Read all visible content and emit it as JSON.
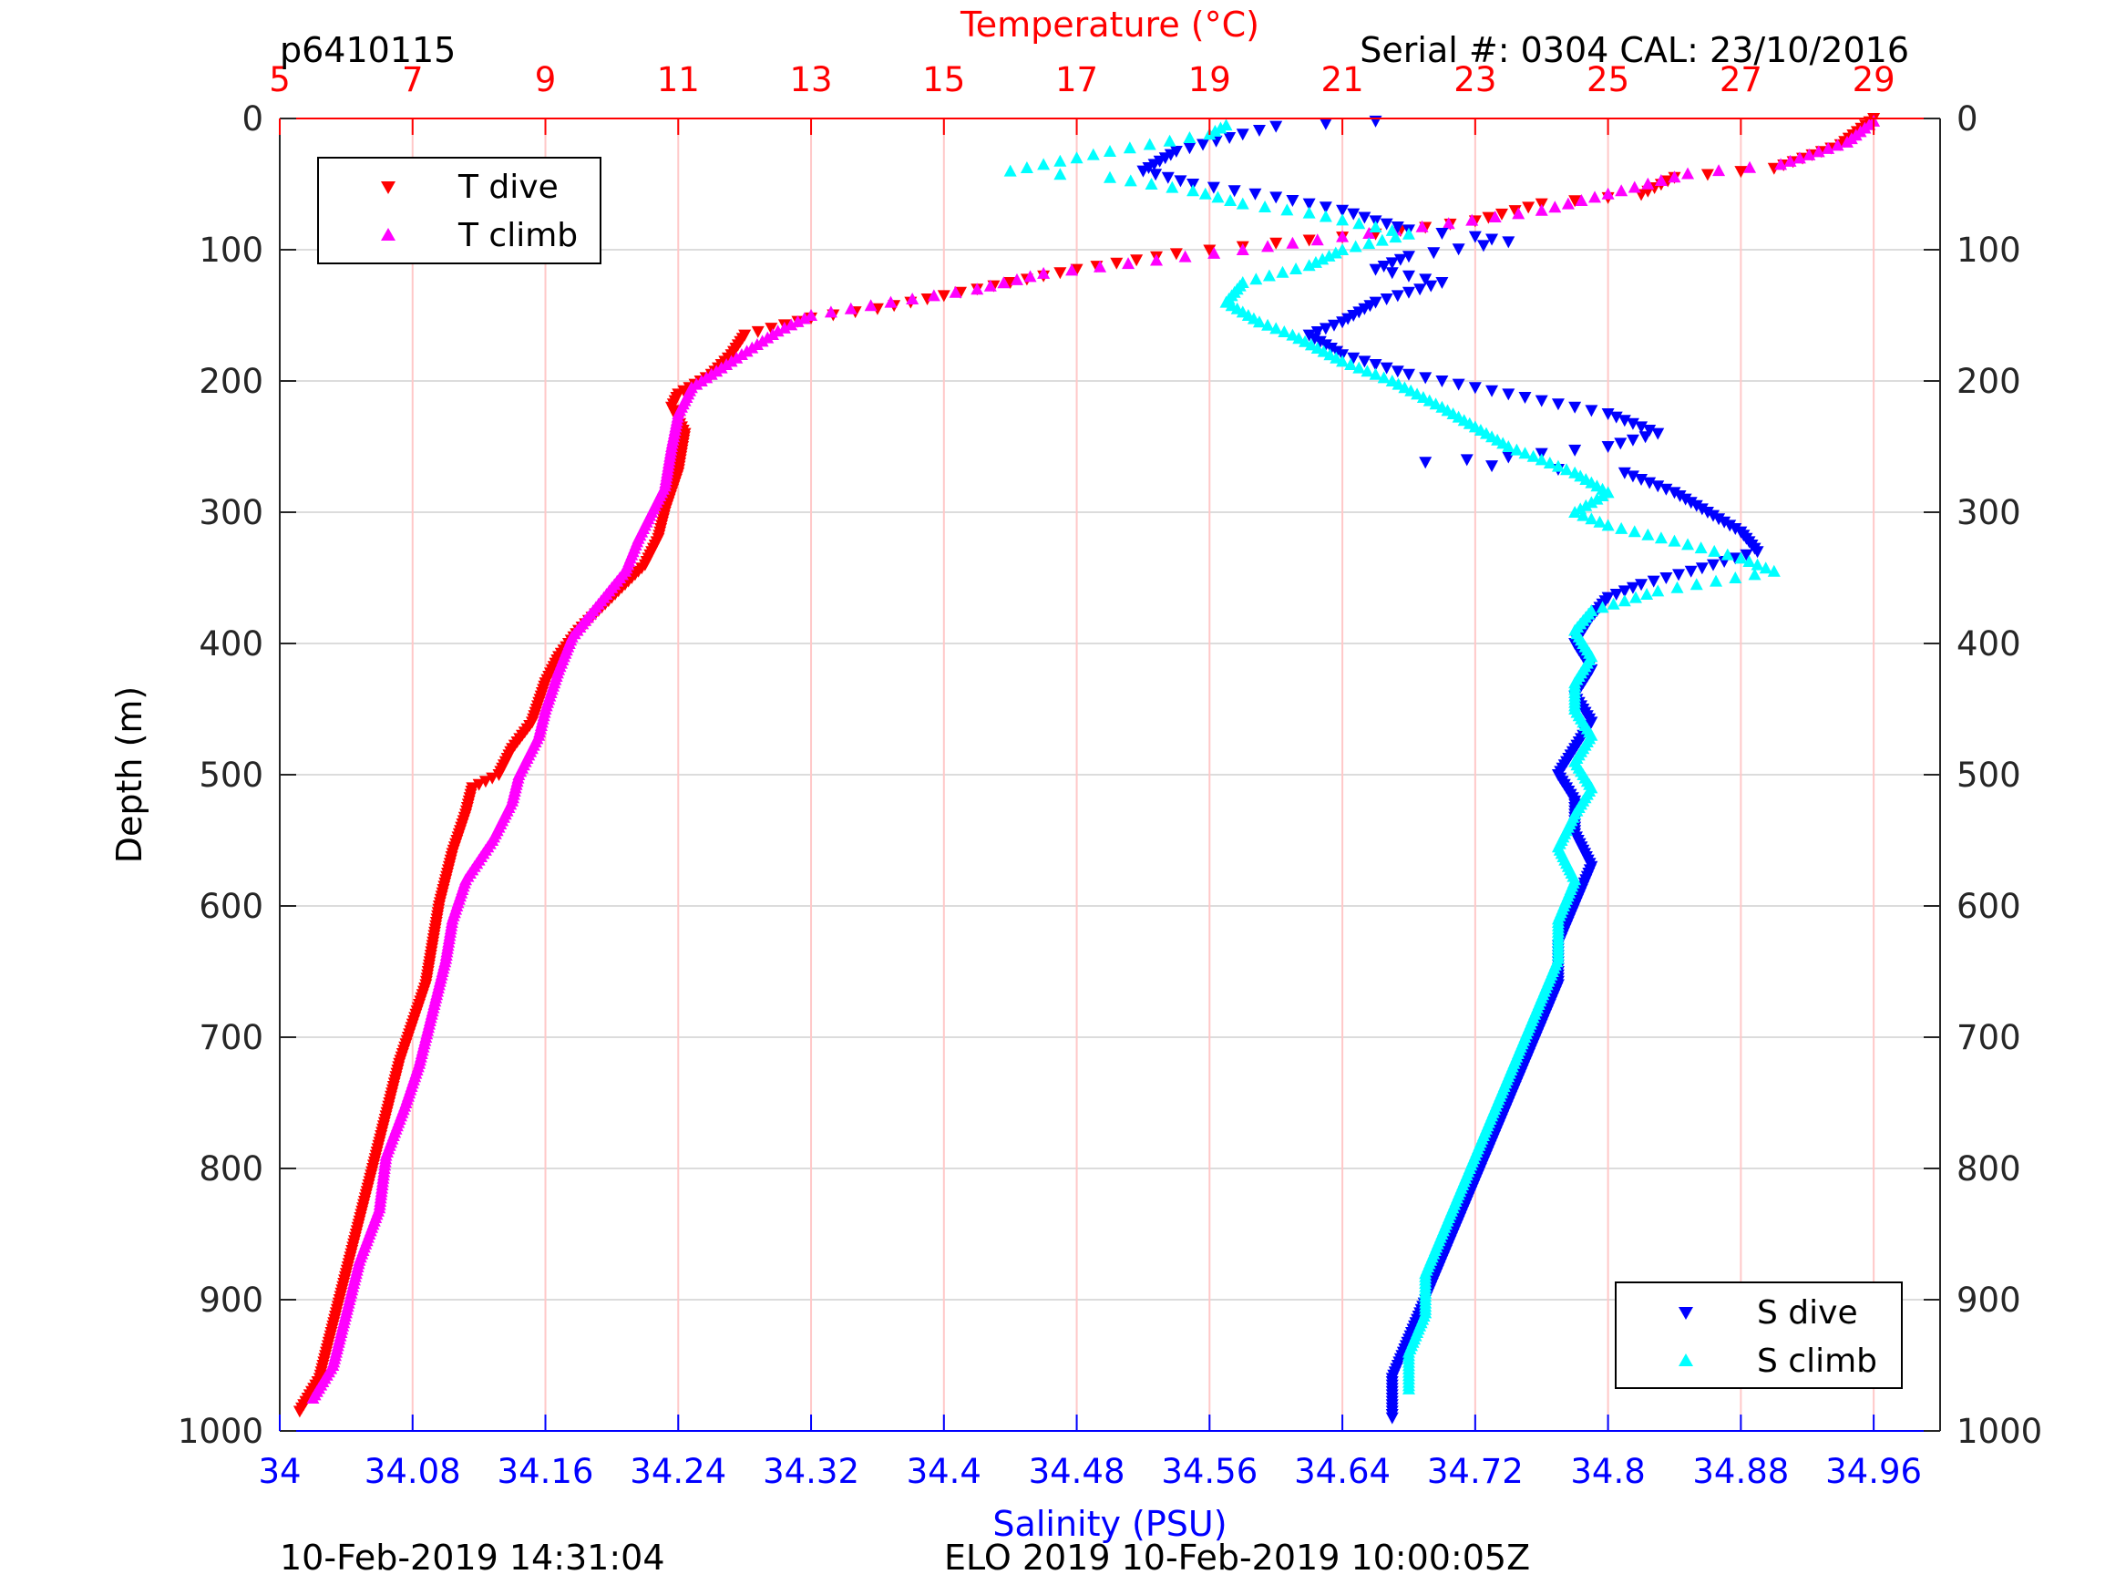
{
  "header": {
    "profile_id": "p6410115",
    "serial": "Serial #: 0304  CAL: 23/10/2016"
  },
  "footer": {
    "left": "10-Feb-2019 14:31:04",
    "center": "ELO 2019 10-Feb-2019 10:00:05Z"
  },
  "colors": {
    "temperature_axis": "#ff0000",
    "salinity_axis": "#0000ff",
    "t_dive": "#ff0000",
    "t_climb": "#ff00ff",
    "s_dive": "#0000ff",
    "s_climb": "#00ffff"
  },
  "chart_data": {
    "type": "scatter",
    "ylabel": "Depth (m)",
    "ylim": [
      0,
      1000
    ],
    "y_reversed": true,
    "yticks": [
      "0",
      "100",
      "200",
      "300",
      "400",
      "500",
      "600",
      "700",
      "800",
      "900",
      "1000"
    ],
    "x_top": {
      "label": "Temperature (°C)",
      "lim": [
        5,
        30
      ],
      "ticks": [
        "5",
        "7",
        "9",
        "11",
        "13",
        "15",
        "17",
        "19",
        "21",
        "23",
        "25",
        "27",
        "29"
      ]
    },
    "x_bottom": {
      "label": "Salinity (PSU)",
      "lim": [
        34,
        35
      ],
      "ticks": [
        "34",
        "34.08",
        "34.16",
        "34.24",
        "34.32",
        "34.4",
        "34.48",
        "34.56",
        "34.64",
        "34.72",
        "34.8",
        "34.88",
        "34.96"
      ]
    },
    "grid": true,
    "legend_temperature": {
      "placement": "top-left",
      "entries": [
        "T dive",
        "T climb"
      ]
    },
    "legend_salinity": {
      "placement": "bottom-right",
      "entries": [
        "S dive",
        "S climb"
      ]
    },
    "series": [
      {
        "name": "T dive",
        "axis": "temperature",
        "marker": "triangle-down",
        "points": [
          [
            29.0,
            0
          ],
          [
            28.5,
            20
          ],
          [
            27.5,
            38
          ],
          [
            26.0,
            45
          ],
          [
            25.5,
            58
          ],
          [
            24.0,
            65
          ],
          [
            23.0,
            78
          ],
          [
            21.5,
            88
          ],
          [
            20.0,
            95
          ],
          [
            18.5,
            103
          ],
          [
            17.0,
            115
          ],
          [
            16.0,
            125
          ],
          [
            15.0,
            135
          ],
          [
            14.0,
            145
          ],
          [
            13.0,
            152
          ],
          [
            12.0,
            165
          ],
          [
            11.8,
            180
          ],
          [
            11.5,
            195
          ],
          [
            11.0,
            210
          ],
          [
            10.9,
            220
          ],
          [
            11.1,
            240
          ],
          [
            11.0,
            270
          ],
          [
            10.8,
            300
          ],
          [
            10.7,
            320
          ],
          [
            10.5,
            340
          ],
          [
            10.0,
            365
          ],
          [
            9.5,
            390
          ],
          [
            9.2,
            410
          ],
          [
            9.0,
            430
          ],
          [
            8.8,
            460
          ],
          [
            8.5,
            480
          ],
          [
            8.3,
            500
          ],
          [
            7.9,
            510
          ],
          [
            7.8,
            530
          ],
          [
            7.6,
            560
          ],
          [
            7.4,
            600
          ],
          [
            7.3,
            630
          ],
          [
            7.2,
            660
          ],
          [
            7.0,
            690
          ],
          [
            6.8,
            720
          ],
          [
            6.6,
            760
          ],
          [
            6.4,
            800
          ],
          [
            6.2,
            840
          ],
          [
            6.0,
            880
          ],
          [
            5.8,
            920
          ],
          [
            5.6,
            960
          ],
          [
            5.3,
            985
          ]
        ]
      },
      {
        "name": "T climb",
        "axis": "temperature",
        "marker": "triangle-up",
        "points": [
          [
            29.0,
            2
          ],
          [
            28.6,
            18
          ],
          [
            27.6,
            35
          ],
          [
            26.2,
            42
          ],
          [
            25.2,
            55
          ],
          [
            24.0,
            70
          ],
          [
            22.6,
            80
          ],
          [
            21.0,
            90
          ],
          [
            19.5,
            100
          ],
          [
            18.2,
            108
          ],
          [
            16.5,
            118
          ],
          [
            15.5,
            130
          ],
          [
            14.2,
            140
          ],
          [
            13.0,
            150
          ],
          [
            12.5,
            162
          ],
          [
            11.8,
            185
          ],
          [
            11.2,
            205
          ],
          [
            11.0,
            225
          ],
          [
            10.9,
            250
          ],
          [
            10.8,
            280
          ],
          [
            10.6,
            300
          ],
          [
            10.4,
            320
          ],
          [
            10.2,
            345
          ],
          [
            9.8,
            370
          ],
          [
            9.4,
            395
          ],
          [
            9.2,
            420
          ],
          [
            9.0,
            450
          ],
          [
            8.9,
            470
          ],
          [
            8.6,
            500
          ],
          [
            8.5,
            520
          ],
          [
            8.2,
            550
          ],
          [
            7.8,
            580
          ],
          [
            7.6,
            610
          ],
          [
            7.5,
            640
          ],
          [
            7.3,
            680
          ],
          [
            7.1,
            720
          ],
          [
            6.9,
            750
          ],
          [
            6.6,
            790
          ],
          [
            6.5,
            830
          ],
          [
            6.2,
            870
          ],
          [
            6.0,
            910
          ],
          [
            5.8,
            950
          ],
          [
            5.5,
            975
          ]
        ]
      },
      {
        "name": "S dive",
        "axis": "salinity",
        "marker": "triangle-down",
        "points": [
          [
            34.66,
            2
          ],
          [
            34.6,
            6
          ],
          [
            34.58,
            12
          ],
          [
            34.54,
            25
          ],
          [
            34.52,
            40
          ],
          [
            34.55,
            50
          ],
          [
            34.6,
            60
          ],
          [
            34.64,
            70
          ],
          [
            34.66,
            78
          ],
          [
            34.68,
            85
          ],
          [
            34.72,
            90
          ],
          [
            34.74,
            94
          ],
          [
            34.68,
            105
          ],
          [
            34.66,
            115
          ],
          [
            34.7,
            125
          ],
          [
            34.66,
            140
          ],
          [
            34.64,
            155
          ],
          [
            34.62,
            165
          ],
          [
            34.64,
            180
          ],
          [
            34.68,
            195
          ],
          [
            34.72,
            205
          ],
          [
            34.76,
            215
          ],
          [
            34.8,
            225
          ],
          [
            34.83,
            240
          ],
          [
            34.8,
            250
          ],
          [
            34.74,
            258
          ],
          [
            34.69,
            262
          ],
          [
            34.81,
            270
          ],
          [
            34.84,
            285
          ],
          [
            34.86,
            300
          ],
          [
            34.88,
            315
          ],
          [
            34.89,
            330
          ],
          [
            34.85,
            345
          ],
          [
            34.82,
            355
          ],
          [
            34.8,
            365
          ],
          [
            34.79,
            380
          ],
          [
            34.78,
            400
          ],
          [
            34.79,
            420
          ],
          [
            34.78,
            440
          ],
          [
            34.79,
            460
          ],
          [
            34.78,
            480
          ],
          [
            34.77,
            500
          ],
          [
            34.78,
            520
          ],
          [
            34.78,
            545
          ],
          [
            34.79,
            570
          ],
          [
            34.78,
            600
          ],
          [
            34.77,
            630
          ],
          [
            34.77,
            660
          ],
          [
            34.76,
            690
          ],
          [
            34.75,
            720
          ],
          [
            34.74,
            750
          ],
          [
            34.73,
            780
          ],
          [
            34.72,
            810
          ],
          [
            34.71,
            840
          ],
          [
            34.7,
            870
          ],
          [
            34.69,
            900
          ],
          [
            34.68,
            930
          ],
          [
            34.67,
            960
          ],
          [
            34.67,
            990
          ]
        ]
      },
      {
        "name": "S climb",
        "axis": "salinity",
        "marker": "triangle-up",
        "points": [
          [
            34.57,
            5
          ],
          [
            34.56,
            12
          ],
          [
            34.5,
            25
          ],
          [
            34.44,
            40
          ],
          [
            34.5,
            45
          ],
          [
            34.55,
            55
          ],
          [
            34.58,
            65
          ],
          [
            34.62,
            72
          ],
          [
            34.65,
            80
          ],
          [
            34.68,
            88
          ],
          [
            34.64,
            100
          ],
          [
            34.62,
            112
          ],
          [
            34.58,
            125
          ],
          [
            34.57,
            140
          ],
          [
            34.59,
            155
          ],
          [
            34.61,
            165
          ],
          [
            34.64,
            185
          ],
          [
            34.67,
            200
          ],
          [
            34.7,
            220
          ],
          [
            34.74,
            250
          ],
          [
            34.78,
            270
          ],
          [
            34.8,
            285
          ],
          [
            34.78,
            300
          ],
          [
            34.8,
            310
          ],
          [
            34.84,
            322
          ],
          [
            34.88,
            335
          ],
          [
            34.9,
            345
          ],
          [
            34.83,
            360
          ],
          [
            34.79,
            375
          ],
          [
            34.78,
            390
          ],
          [
            34.79,
            410
          ],
          [
            34.78,
            430
          ],
          [
            34.78,
            450
          ],
          [
            34.79,
            470
          ],
          [
            34.78,
            490
          ],
          [
            34.79,
            510
          ],
          [
            34.78,
            530
          ],
          [
            34.77,
            555
          ],
          [
            34.78,
            580
          ],
          [
            34.77,
            610
          ],
          [
            34.77,
            640
          ],
          [
            34.76,
            670
          ],
          [
            34.75,
            700
          ],
          [
            34.74,
            730
          ],
          [
            34.73,
            760
          ],
          [
            34.72,
            790
          ],
          [
            34.71,
            820
          ],
          [
            34.7,
            850
          ],
          [
            34.69,
            880
          ],
          [
            34.69,
            910
          ],
          [
            34.68,
            940
          ],
          [
            34.68,
            968
          ]
        ]
      }
    ]
  }
}
